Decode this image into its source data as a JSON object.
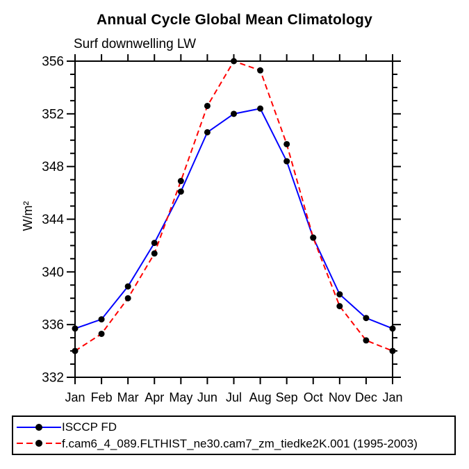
{
  "chart_data": {
    "type": "line",
    "title": "Annual Cycle Global Mean Climatology",
    "subtitle": "Surf downwelling LW",
    "ylabel": "W/m²",
    "xlabel": "",
    "categories": [
      "Jan",
      "Feb",
      "Mar",
      "Apr",
      "May",
      "Jun",
      "Jul",
      "Aug",
      "Sep",
      "Oct",
      "Nov",
      "Dec",
      "Jan"
    ],
    "series": [
      {
        "name": "ISCCP FD",
        "color": "#0000ff",
        "line_style": "solid",
        "marker": "filled-circle",
        "marker_color": "#000000",
        "values": [
          335.7,
          336.4,
          338.9,
          342.2,
          346.1,
          350.6,
          352.0,
          352.4,
          348.4,
          342.6,
          338.3,
          336.5,
          335.7
        ]
      },
      {
        "name": "f.cam6_4_089.FLTHIST_ne30.cam7_zm_tiedke2K.001 (1995-2003)",
        "color": "#ff0000",
        "line_style": "dashed",
        "marker": "filled-circle",
        "marker_color": "#000000",
        "values": [
          334.0,
          335.3,
          338.0,
          341.4,
          346.9,
          352.6,
          356.0,
          355.3,
          349.7,
          342.6,
          337.4,
          334.8,
          334.0
        ]
      }
    ],
    "ylim": [
      332,
      356
    ],
    "y_ticks": [
      332,
      336,
      340,
      344,
      348,
      352,
      356
    ],
    "y_major_step": 4,
    "y_minor_step": 1,
    "grid": false,
    "axis_color": "#000000",
    "legend_position": "bottom-left-box"
  }
}
